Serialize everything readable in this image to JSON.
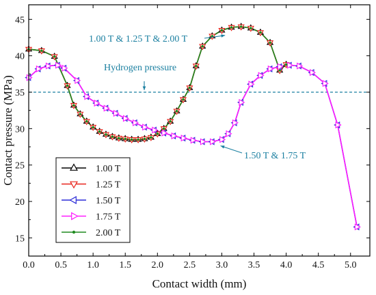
{
  "chart_data": {
    "type": "line",
    "xlabel": "Contact width (mm)",
    "ylabel": "Contact pressure (MPa)",
    "xlim": [
      0.0,
      5.3
    ],
    "ylim": [
      12.5,
      47.0
    ],
    "xticks": [
      "0.0",
      "0.5",
      "1.0",
      "1.5",
      "2.0",
      "2.5",
      "3.0",
      "3.5",
      "4.0",
      "4.5",
      "5.0"
    ],
    "yticks": [
      "15",
      "20",
      "25",
      "30",
      "35",
      "40",
      "45"
    ],
    "grid": false,
    "legend_position": "bottom-left",
    "reference_line": {
      "label": "Hydrogen pressure",
      "y": 35.0,
      "color": "#1a7fa0"
    },
    "annotations": [
      {
        "text": "1.00 T & 1.25 T & 2.00 T",
        "points_to": [
          3.05,
          42.8
        ]
      },
      {
        "text": "1.50 T & 1.75 T",
        "points_to": [
          2.98,
          28.2
        ]
      }
    ],
    "series": [
      {
        "name": "1.00 T",
        "color": "#000000",
        "marker": "triangle-up",
        "x": [
          0.0,
          0.2,
          0.4,
          0.6,
          0.7,
          0.8,
          0.9,
          1.0,
          1.1,
          1.2,
          1.3,
          1.4,
          1.5,
          1.6,
          1.7,
          1.8,
          1.9,
          2.0,
          2.1,
          2.2,
          2.3,
          2.4,
          2.5,
          2.6,
          2.7,
          2.85,
          3.0,
          3.15,
          3.3,
          3.45,
          3.6,
          3.75,
          3.9,
          4.0
        ],
        "y": [
          40.9,
          40.7,
          39.9,
          35.9,
          33.2,
          32.0,
          31.0,
          30.2,
          29.6,
          29.2,
          28.9,
          28.7,
          28.6,
          28.5,
          28.5,
          28.6,
          28.8,
          29.3,
          30.0,
          31.0,
          32.4,
          34.0,
          35.6,
          38.6,
          41.3,
          42.7,
          43.5,
          43.9,
          44.0,
          43.8,
          43.2,
          41.8,
          38.0,
          38.8
        ]
      },
      {
        "name": "1.25 T",
        "color": "#e8231a",
        "marker": "triangle-down",
        "x": [
          0.0,
          0.2,
          0.4,
          0.6,
          0.7,
          0.8,
          0.9,
          1.0,
          1.1,
          1.2,
          1.3,
          1.4,
          1.5,
          1.6,
          1.7,
          1.8,
          1.9,
          2.0,
          2.1,
          2.2,
          2.3,
          2.4,
          2.5,
          2.6,
          2.7,
          2.85,
          3.0,
          3.15,
          3.3,
          3.45,
          3.6,
          3.75,
          3.9,
          4.0
        ],
        "y": [
          40.9,
          40.7,
          39.9,
          35.9,
          33.2,
          32.0,
          31.0,
          30.2,
          29.6,
          29.2,
          28.9,
          28.7,
          28.6,
          28.5,
          28.5,
          28.6,
          28.8,
          29.3,
          30.0,
          31.0,
          32.4,
          34.0,
          35.6,
          38.6,
          41.3,
          42.7,
          43.5,
          43.9,
          44.0,
          43.8,
          43.2,
          41.8,
          38.0,
          38.8
        ]
      },
      {
        "name": "1.50 T",
        "color": "#2a2ad8",
        "marker": "triangle-left",
        "x": [
          0.0,
          0.15,
          0.3,
          0.45,
          0.55,
          0.75,
          0.9,
          1.05,
          1.2,
          1.35,
          1.5,
          1.65,
          1.8,
          1.95,
          2.1,
          2.25,
          2.4,
          2.55,
          2.7,
          2.85,
          3.0,
          3.1,
          3.2,
          3.3,
          3.45,
          3.6,
          3.75,
          3.9,
          4.05,
          4.2,
          4.4,
          4.6,
          4.8,
          5.1
        ],
        "y": [
          37.0,
          38.2,
          38.6,
          38.7,
          38.3,
          36.6,
          34.4,
          33.5,
          32.8,
          32.1,
          31.4,
          30.8,
          30.2,
          29.8,
          29.4,
          29.0,
          28.7,
          28.4,
          28.2,
          28.2,
          28.5,
          29.3,
          30.8,
          33.6,
          36.1,
          37.3,
          38.2,
          38.5,
          38.7,
          38.6,
          37.7,
          36.2,
          30.5,
          16.5
        ]
      },
      {
        "name": "1.75 T",
        "color": "#ff1aff",
        "marker": "triangle-right",
        "x": [
          0.0,
          0.15,
          0.3,
          0.45,
          0.55,
          0.75,
          0.9,
          1.05,
          1.2,
          1.35,
          1.5,
          1.65,
          1.8,
          1.95,
          2.1,
          2.25,
          2.4,
          2.55,
          2.7,
          2.85,
          3.0,
          3.1,
          3.2,
          3.3,
          3.45,
          3.6,
          3.75,
          3.9,
          4.05,
          4.2,
          4.4,
          4.6,
          4.8,
          5.1
        ],
        "y": [
          37.0,
          38.2,
          38.6,
          38.7,
          38.3,
          36.6,
          34.4,
          33.5,
          32.8,
          32.1,
          31.4,
          30.8,
          30.2,
          29.8,
          29.4,
          29.0,
          28.7,
          28.4,
          28.2,
          28.2,
          28.5,
          29.3,
          30.8,
          33.6,
          36.1,
          37.3,
          38.2,
          38.5,
          38.7,
          38.6,
          37.7,
          36.2,
          30.5,
          16.5
        ]
      },
      {
        "name": "2.00 T",
        "color": "#1f8a1f",
        "marker": "dot",
        "x": [
          0.0,
          0.2,
          0.4,
          0.6,
          0.7,
          0.8,
          0.9,
          1.0,
          1.1,
          1.2,
          1.3,
          1.4,
          1.5,
          1.6,
          1.7,
          1.8,
          1.9,
          2.0,
          2.1,
          2.2,
          2.3,
          2.4,
          2.5,
          2.6,
          2.7,
          2.85,
          3.0,
          3.15,
          3.3,
          3.45,
          3.6,
          3.75,
          3.9,
          4.0
        ],
        "y": [
          40.9,
          40.7,
          39.9,
          35.9,
          33.2,
          32.0,
          31.0,
          30.2,
          29.6,
          29.2,
          28.9,
          28.7,
          28.6,
          28.5,
          28.5,
          28.6,
          28.8,
          29.3,
          30.0,
          31.0,
          32.4,
          34.0,
          35.6,
          38.6,
          41.3,
          42.7,
          43.5,
          43.9,
          44.0,
          43.8,
          43.2,
          41.8,
          38.0,
          38.8
        ]
      }
    ]
  }
}
